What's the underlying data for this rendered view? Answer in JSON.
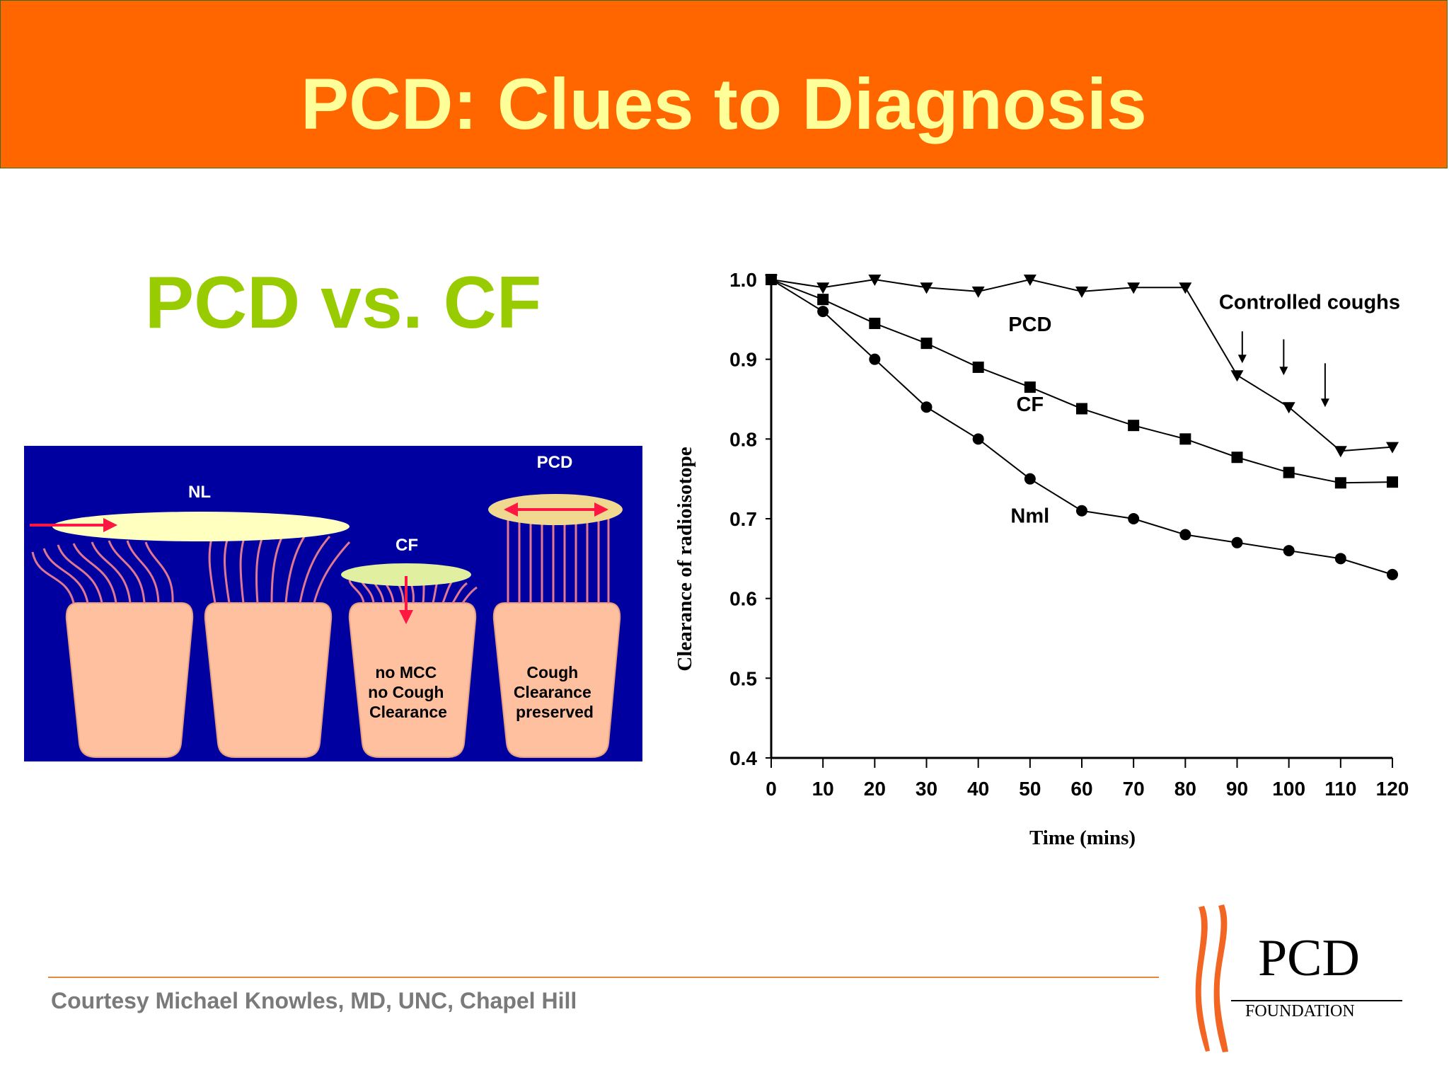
{
  "slide": {
    "title": "PCD: Clues to Diagnosis",
    "subtitle": "PCD vs. CF",
    "credit": "Courtesy Michael Knowles, MD, UNC, Chapel Hill"
  },
  "diagram": {
    "labels": {
      "nl": "NL",
      "cf": "CF",
      "pcd": "PCD"
    },
    "cell_text": {
      "cf": [
        "no MCC",
        "no Cough",
        "Clearance"
      ],
      "pcd": [
        "Cough",
        "Clearance",
        "preserved"
      ]
    },
    "colors": {
      "background": "#0000A0",
      "cell": "#FFC0A0",
      "mucus": "#FFFFC0",
      "cilia": "#E07890",
      "arrow": "#FF1744"
    }
  },
  "chart_data": {
    "type": "line",
    "title": "",
    "xlabel": "Time (mins)",
    "ylabel": "Clearance of radioisotope",
    "xlim": [
      0,
      120
    ],
    "ylim": [
      0.4,
      1.0
    ],
    "x_ticks": [
      "0",
      "10",
      "20",
      "30",
      "40",
      "50",
      "60",
      "70",
      "80",
      "90",
      "100",
      "110",
      "120"
    ],
    "y_ticks": [
      "0.4",
      "0.5",
      "0.6",
      "0.7",
      "0.8",
      "0.9",
      "1.0"
    ],
    "series": [
      {
        "name": "PCD",
        "marker": "triangle-down",
        "x": [
          0,
          10,
          20,
          30,
          40,
          50,
          60,
          70,
          80,
          90,
          100,
          110,
          120
        ],
        "values": [
          1.0,
          0.99,
          1.0,
          0.99,
          0.985,
          1.0,
          0.985,
          0.99,
          0.99,
          0.88,
          0.84,
          0.785,
          0.79
        ]
      },
      {
        "name": "CF",
        "marker": "square",
        "x": [
          0,
          10,
          20,
          30,
          40,
          50,
          60,
          70,
          80,
          90,
          100,
          110,
          120
        ],
        "values": [
          1.0,
          0.975,
          0.945,
          0.92,
          0.89,
          0.865,
          0.838,
          0.817,
          0.8,
          0.777,
          0.758,
          0.745,
          0.746
        ]
      },
      {
        "name": "Nml",
        "marker": "circle",
        "x": [
          0,
          10,
          20,
          30,
          40,
          50,
          60,
          70,
          80,
          90,
          100,
          110,
          120
        ],
        "values": [
          1.0,
          0.96,
          0.9,
          0.84,
          0.8,
          0.75,
          0.71,
          0.7,
          0.68,
          0.67,
          0.66,
          0.65,
          0.63
        ]
      }
    ],
    "annotation": {
      "text": "Controlled coughs",
      "arrow_x": [
        91,
        99,
        107
      ]
    },
    "grid": false,
    "legend": "inline labels"
  },
  "logo": {
    "name": "PCD",
    "sub": "FOUNDATION",
    "mark_color": "#F26522"
  }
}
